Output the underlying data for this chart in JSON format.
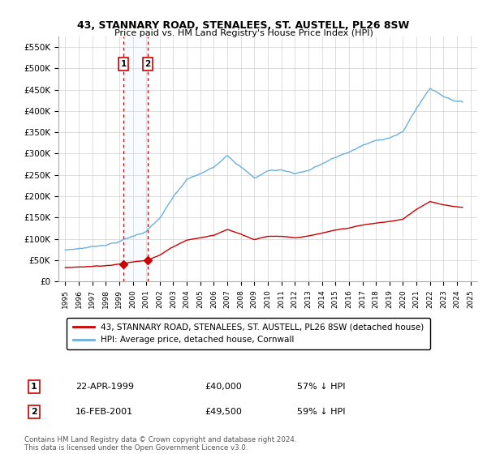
{
  "title": "43, STANNARY ROAD, STENALEES, ST. AUSTELL, PL26 8SW",
  "subtitle": "Price paid vs. HM Land Registry's House Price Index (HPI)",
  "legend_line1": "43, STANNARY ROAD, STENALEES, ST. AUSTELL, PL26 8SW (detached house)",
  "legend_line2": "HPI: Average price, detached house, Cornwall",
  "footer": "Contains HM Land Registry data © Crown copyright and database right 2024.\nThis data is licensed under the Open Government Licence v3.0.",
  "sale1_label": "1",
  "sale1_date": "22-APR-1999",
  "sale1_price": "£40,000",
  "sale1_hpi": "57% ↓ HPI",
  "sale1_x": 1999.31,
  "sale1_y": 40000,
  "sale2_label": "2",
  "sale2_date": "16-FEB-2001",
  "sale2_price": "£49,500",
  "sale2_hpi": "59% ↓ HPI",
  "sale2_x": 2001.12,
  "sale2_y": 49500,
  "hpi_color": "#6ab0de",
  "price_color": "#cc0000",
  "marker_color": "#cc0000",
  "vline_color": "#cc0000",
  "highlight_color": "#ddeeff",
  "ylim": [
    0,
    575000
  ],
  "yticks": [
    0,
    50000,
    100000,
    150000,
    200000,
    250000,
    300000,
    350000,
    400000,
    450000,
    500000,
    550000
  ],
  "xlim": [
    1994.5,
    2025.5
  ],
  "hpi_years": [
    1995.0,
    1995.08,
    1995.17,
    1995.25,
    1995.33,
    1995.42,
    1995.5,
    1995.58,
    1995.67,
    1995.75,
    1995.83,
    1995.92,
    1996.0,
    1996.08,
    1996.17,
    1996.25,
    1996.33,
    1996.42,
    1996.5,
    1996.58,
    1996.67,
    1996.75,
    1996.83,
    1996.92,
    1997.0,
    1997.08,
    1997.17,
    1997.25,
    1997.33,
    1997.42,
    1997.5,
    1997.58,
    1997.67,
    1997.75,
    1997.83,
    1997.92,
    1998.0,
    1998.08,
    1998.17,
    1998.25,
    1998.33,
    1998.42,
    1998.5,
    1998.58,
    1998.67,
    1998.75,
    1998.83,
    1998.92,
    1999.0,
    1999.08,
    1999.17,
    1999.25,
    1999.33,
    1999.42,
    1999.5,
    1999.58,
    1999.67,
    1999.75,
    1999.83,
    1999.92,
    2000.0,
    2000.08,
    2000.17,
    2000.25,
    2000.33,
    2000.42,
    2000.5,
    2000.58,
    2000.67,
    2000.75,
    2000.83,
    2000.92,
    2001.0,
    2001.08,
    2001.17,
    2001.25,
    2001.33,
    2001.42,
    2001.5,
    2001.58,
    2001.67,
    2001.75,
    2001.83,
    2001.92,
    2002.0,
    2002.08,
    2002.17,
    2002.25,
    2002.33,
    2002.42,
    2002.5,
    2002.58,
    2002.67,
    2002.75,
    2002.83,
    2002.92,
    2003.0,
    2003.08,
    2003.17,
    2003.25,
    2003.33,
    2003.42,
    2003.5,
    2003.58,
    2003.67,
    2003.75,
    2003.83,
    2003.92,
    2004.0,
    2004.08,
    2004.17,
    2004.25,
    2004.33,
    2004.42,
    2004.5,
    2004.58,
    2004.67,
    2004.75,
    2004.83,
    2004.92,
    2005.0,
    2005.08,
    2005.17,
    2005.25,
    2005.33,
    2005.42,
    2005.5,
    2005.58,
    2005.67,
    2005.75,
    2005.83,
    2005.92,
    2006.0,
    2006.08,
    2006.17,
    2006.25,
    2006.33,
    2006.42,
    2006.5,
    2006.58,
    2006.67,
    2006.75,
    2006.83,
    2006.92,
    2007.0,
    2007.08,
    2007.17,
    2007.25,
    2007.33,
    2007.42,
    2007.5,
    2007.58,
    2007.67,
    2007.75,
    2007.83,
    2007.92,
    2008.0,
    2008.08,
    2008.17,
    2008.25,
    2008.33,
    2008.42,
    2008.5,
    2008.58,
    2008.67,
    2008.75,
    2008.83,
    2008.92,
    2009.0,
    2009.08,
    2009.17,
    2009.25,
    2009.33,
    2009.42,
    2009.5,
    2009.58,
    2009.67,
    2009.75,
    2009.83,
    2009.92,
    2010.0,
    2010.08,
    2010.17,
    2010.25,
    2010.33,
    2010.42,
    2010.5,
    2010.58,
    2010.67,
    2010.75,
    2010.83,
    2010.92,
    2011.0,
    2011.08,
    2011.17,
    2011.25,
    2011.33,
    2011.42,
    2011.5,
    2011.58,
    2011.67,
    2011.75,
    2011.83,
    2011.92,
    2012.0,
    2012.08,
    2012.17,
    2012.25,
    2012.33,
    2012.42,
    2012.5,
    2012.58,
    2012.67,
    2012.75,
    2012.83,
    2012.92,
    2013.0,
    2013.08,
    2013.17,
    2013.25,
    2013.33,
    2013.42,
    2013.5,
    2013.58,
    2013.67,
    2013.75,
    2013.83,
    2013.92,
    2014.0,
    2014.08,
    2014.17,
    2014.25,
    2014.33,
    2014.42,
    2014.5,
    2014.58,
    2014.67,
    2014.75,
    2014.83,
    2014.92,
    2015.0,
    2015.08,
    2015.17,
    2015.25,
    2015.33,
    2015.42,
    2015.5,
    2015.58,
    2015.67,
    2015.75,
    2015.83,
    2015.92,
    2016.0,
    2016.08,
    2016.17,
    2016.25,
    2016.33,
    2016.42,
    2016.5,
    2016.58,
    2016.67,
    2016.75,
    2016.83,
    2016.92,
    2017.0,
    2017.08,
    2017.17,
    2017.25,
    2017.33,
    2017.42,
    2017.5,
    2017.58,
    2017.67,
    2017.75,
    2017.83,
    2017.92,
    2018.0,
    2018.08,
    2018.17,
    2018.25,
    2018.33,
    2018.42,
    2018.5,
    2018.58,
    2018.67,
    2018.75,
    2018.83,
    2018.92,
    2019.0,
    2019.08,
    2019.17,
    2019.25,
    2019.33,
    2019.42,
    2019.5,
    2019.58,
    2019.67,
    2019.75,
    2019.83,
    2019.92,
    2020.0,
    2020.08,
    2020.17,
    2020.25,
    2020.33,
    2020.42,
    2020.5,
    2020.58,
    2020.67,
    2020.75,
    2020.83,
    2020.92,
    2021.0,
    2021.08,
    2021.17,
    2021.25,
    2021.33,
    2021.42,
    2021.5,
    2021.58,
    2021.67,
    2021.75,
    2021.83,
    2021.92,
    2022.0,
    2022.08,
    2022.17,
    2022.25,
    2022.33,
    2022.42,
    2022.5,
    2022.58,
    2022.67,
    2022.75,
    2022.83,
    2022.92,
    2023.0,
    2023.08,
    2023.17,
    2023.25,
    2023.33,
    2023.42,
    2023.5,
    2023.58,
    2023.67,
    2023.75,
    2023.83,
    2023.92,
    2024.0,
    2024.08,
    2024.17,
    2024.25,
    2024.33,
    2024.42
  ],
  "hpi_base": {
    "1995": 70000,
    "1996": 74000,
    "1997": 79000,
    "1998": 85000,
    "1999": 93000,
    "2000": 105000,
    "2001": 118000,
    "2002": 148000,
    "2003": 195000,
    "2004": 235000,
    "2005": 248000,
    "2006": 262000,
    "2007": 295000,
    "2008": 270000,
    "2009": 242000,
    "2010": 260000,
    "2011": 262000,
    "2012": 255000,
    "2013": 263000,
    "2014": 278000,
    "2015": 292000,
    "2016": 305000,
    "2017": 320000,
    "2018": 330000,
    "2019": 340000,
    "2020": 352000,
    "2021": 408000,
    "2022": 455000,
    "2023": 438000,
    "2024": 428000,
    "2025": 420000
  }
}
